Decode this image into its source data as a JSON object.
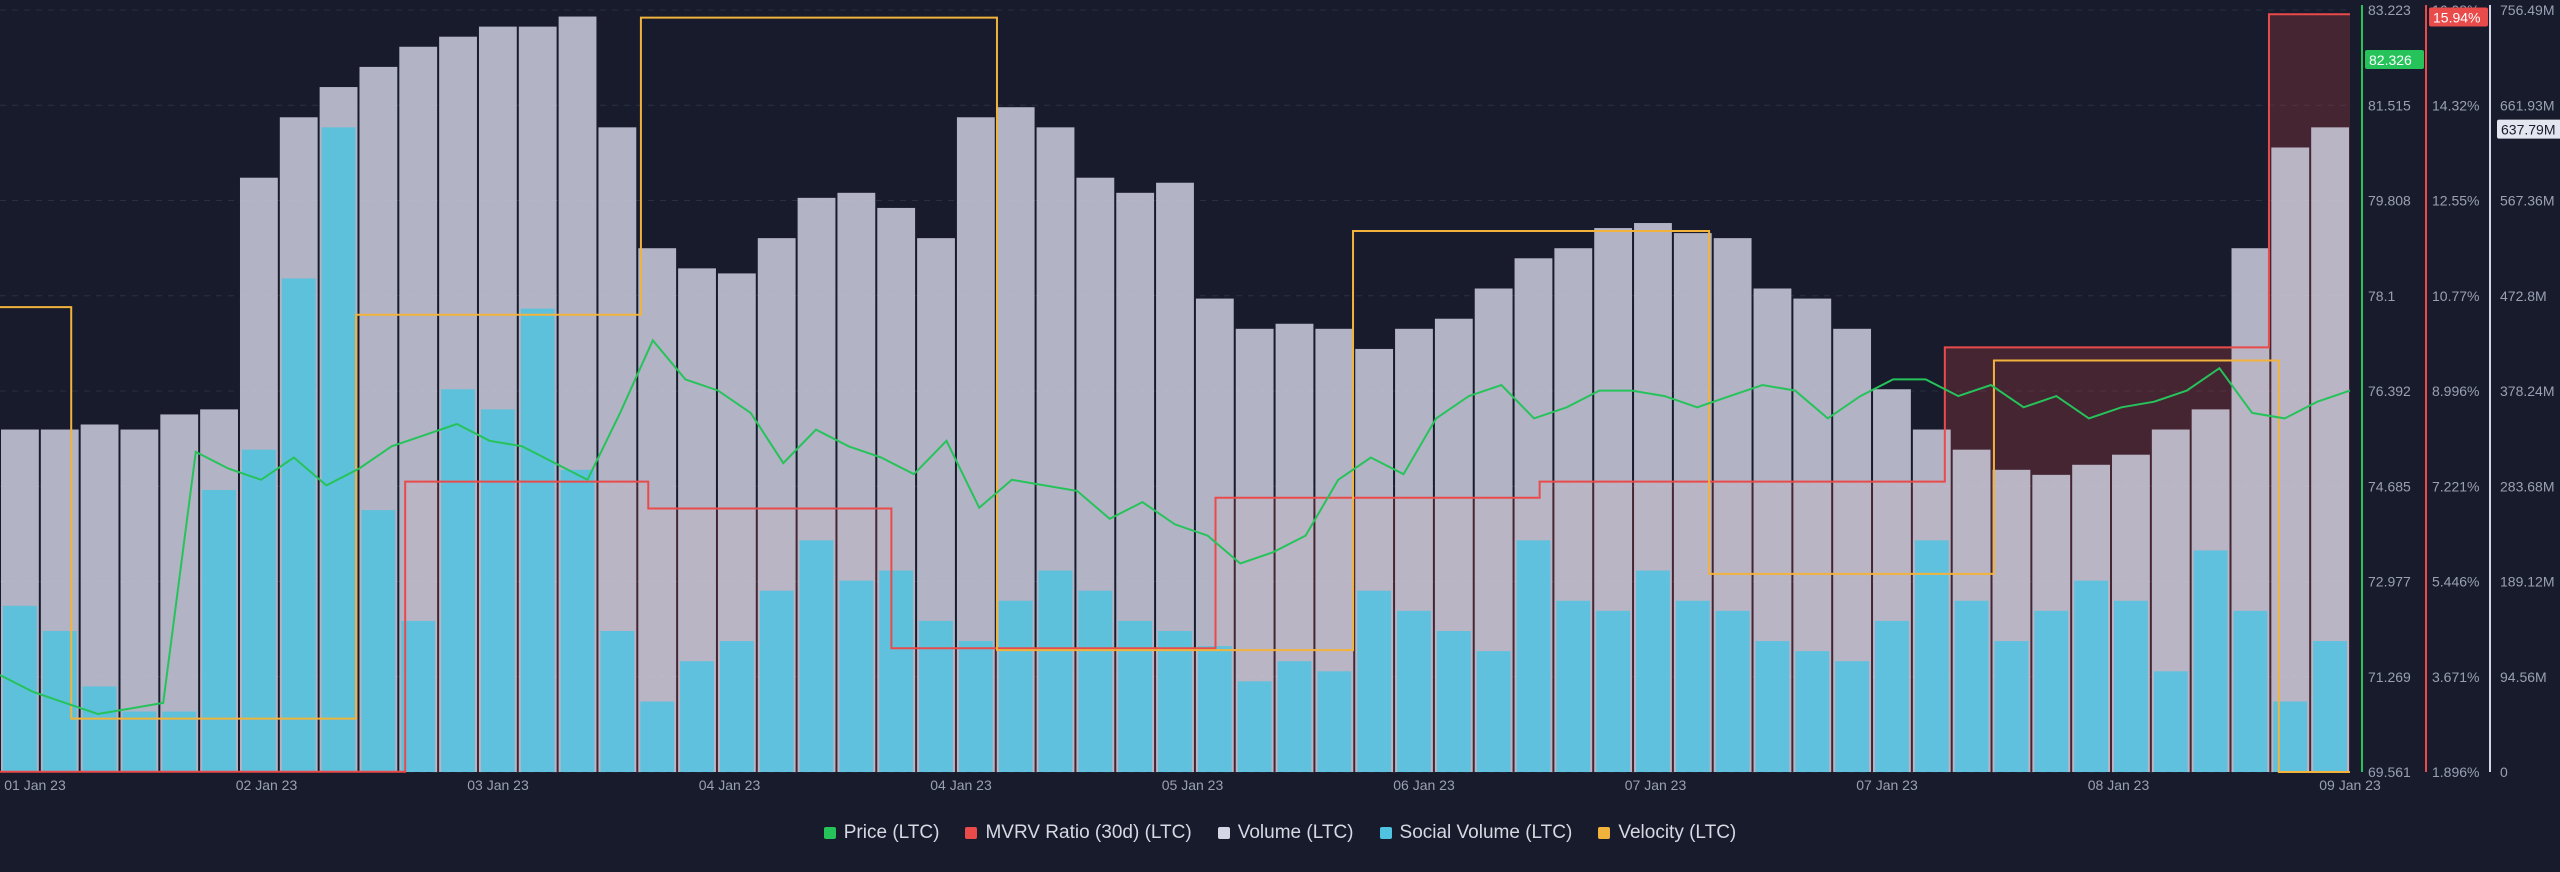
{
  "chart_data": {
    "type": "bar",
    "title": "",
    "x_ticks": [
      "01 Jan 23",
      "02 Jan 23",
      "03 Jan 23",
      "04 Jan 23",
      "04 Jan 23",
      "05 Jan 23",
      "06 Jan 23",
      "07 Jan 23",
      "07 Jan 23",
      "08 Jan 23",
      "09 Jan 23"
    ],
    "axes": {
      "price": {
        "label": "Price (LTC)",
        "color": "#26c35a",
        "ticks": [
          "83.223",
          "81.515",
          "79.808",
          "78.1",
          "76.392",
          "74.685",
          "72.977",
          "71.269",
          "69.561"
        ],
        "range": [
          69.561,
          83.223
        ],
        "current": "82.326"
      },
      "mvrv": {
        "label": "MVRV Ratio (30d) (LTC)",
        "color": "#e94b4b",
        "ticks": [
          "16.08%",
          "14.32%",
          "12.55%",
          "10.77%",
          "8.996%",
          "7.221%",
          "5.446%",
          "3.671%",
          "1.896%"
        ],
        "range": [
          1.896,
          16.08
        ],
        "current": "15.94%"
      },
      "volume": {
        "label": "Volume (LTC)",
        "color": "#d4d6e6",
        "ticks": [
          "756.49M",
          "661.93M",
          "567.36M",
          "472.8M",
          "378.24M",
          "283.68M",
          "189.12M",
          "94.56M",
          "0"
        ],
        "range": [
          0,
          756.49
        ],
        "current": "637.79M"
      }
    },
    "series": [
      {
        "name": "Price (LTC)",
        "axis": "price",
        "color": "#26c35a",
        "values": [
          71.3,
          71.0,
          70.8,
          70.6,
          70.7,
          70.8,
          75.3,
          75.0,
          74.8,
          75.2,
          74.7,
          75.0,
          75.4,
          75.6,
          75.8,
          75.5,
          75.4,
          75.1,
          74.8,
          76.0,
          77.3,
          76.6,
          76.4,
          76.0,
          75.1,
          75.7,
          75.4,
          75.2,
          74.9,
          75.5,
          74.3,
          74.8,
          74.7,
          74.6,
          74.1,
          74.4,
          74.0,
          73.8,
          73.3,
          73.5,
          73.8,
          74.8,
          75.2,
          74.9,
          75.9,
          76.3,
          76.5,
          75.9,
          76.1,
          76.4,
          76.4,
          76.3,
          76.1,
          76.3,
          76.5,
          76.4,
          75.9,
          76.3,
          76.6,
          76.6,
          76.3,
          76.5,
          76.1,
          76.3,
          75.9,
          76.1,
          76.2,
          76.4,
          76.8,
          76.0,
          75.9,
          76.2,
          76.4
        ]
      },
      {
        "name": "MVRV Ratio (30d) (LTC)",
        "axis": "mvrv",
        "color": "#e94b4b",
        "values": [
          1.9,
          1.9,
          1.9,
          1.9,
          1.9,
          7.3,
          7.3,
          7.3,
          6.8,
          6.8,
          6.8,
          4.2,
          4.2,
          4.2,
          4.2,
          7.0,
          7.0,
          7.0,
          7.0,
          7.3,
          7.3,
          7.3,
          7.3,
          7.3,
          9.8,
          9.8,
          9.8,
          9.8,
          16.0
        ]
      },
      {
        "name": "Volume (LTC)",
        "axis": "volume",
        "color": "#d4d6e6",
        "values": [
          340,
          340,
          345,
          340,
          355,
          360,
          590,
          650,
          680,
          700,
          720,
          730,
          740,
          740,
          750,
          640,
          520,
          500,
          495,
          530,
          570,
          575,
          560,
          530,
          650,
          660,
          640,
          590,
          575,
          585,
          470,
          440,
          445,
          440,
          420,
          440,
          450,
          480,
          510,
          520,
          540,
          545,
          535,
          530,
          480,
          470,
          440,
          380,
          340,
          320,
          300,
          295,
          305,
          315,
          340,
          360,
          520,
          620,
          640
        ]
      },
      {
        "name": "Social Volume (LTC)",
        "axis": "volume",
        "color": "#4fc3e0",
        "values": [
          165,
          140,
          85,
          60,
          60,
          280,
          320,
          490,
          640,
          260,
          150,
          380,
          360,
          460,
          300,
          140,
          70,
          110,
          130,
          180,
          230,
          190,
          200,
          150,
          130,
          170,
          200,
          180,
          150,
          140,
          125,
          90,
          110,
          100,
          180,
          160,
          140,
          120,
          230,
          170,
          160,
          200,
          170,
          160,
          130,
          120,
          110,
          150,
          230,
          170,
          130,
          160,
          190,
          170,
          100,
          220,
          160,
          70,
          130
        ]
      },
      {
        "name": "Velocity (LTC)",
        "axis": "none",
        "color": "#f2b33d",
        "values": [
          0.61,
          0.07,
          0.07,
          0.07,
          0.07,
          0.6,
          0.6,
          0.6,
          0.6,
          0.99,
          0.99,
          0.99,
          0.99,
          0.99,
          0.16,
          0.16,
          0.16,
          0.16,
          0.16,
          0.71,
          0.71,
          0.71,
          0.71,
          0.71,
          0.26,
          0.26,
          0.26,
          0.26,
          0.54,
          0.54,
          0.54,
          0.54,
          0.0
        ]
      }
    ],
    "grid": true,
    "legend_position": "bottom-center"
  },
  "legend": [
    {
      "label": "Price (LTC)",
      "color": "#26c35a"
    },
    {
      "label": "MVRV Ratio (30d) (LTC)",
      "color": "#e94b4b"
    },
    {
      "label": "Volume (LTC)",
      "color": "#d4d6e6"
    },
    {
      "label": "Social Volume (LTC)",
      "color": "#4fc3e0"
    },
    {
      "label": "Velocity (LTC)",
      "color": "#f2b33d"
    }
  ]
}
